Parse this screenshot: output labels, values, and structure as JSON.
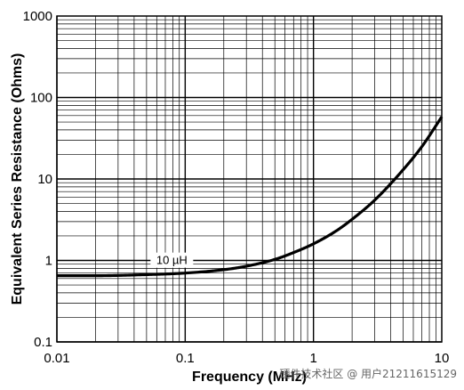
{
  "chart_data": {
    "type": "line",
    "title": "",
    "xlabel": "Frequency (MHz)",
    "ylabel": "Equivalent Series Resistance (Ohms)",
    "xscale": "log",
    "yscale": "log",
    "xlim": [
      0.01,
      10
    ],
    "ylim": [
      0.1,
      1000
    ],
    "grid": true,
    "x_tick_labels": [
      "0.01",
      "0.1",
      "1",
      "10"
    ],
    "y_tick_labels": [
      "0.1",
      "1",
      "10",
      "100",
      "1000"
    ],
    "series": [
      {
        "name": "10 µH",
        "x": [
          0.01,
          0.02,
          0.05,
          0.1,
          0.2,
          0.3,
          0.5,
          0.7,
          1,
          1.5,
          2,
          3,
          5,
          7,
          10
        ],
        "y": [
          0.65,
          0.65,
          0.67,
          0.7,
          0.77,
          0.85,
          1.03,
          1.25,
          1.6,
          2.3,
          3.2,
          5.5,
          13,
          25,
          58
        ]
      }
    ]
  },
  "watermark": "硬件技术社区 @ 用户21211615129"
}
